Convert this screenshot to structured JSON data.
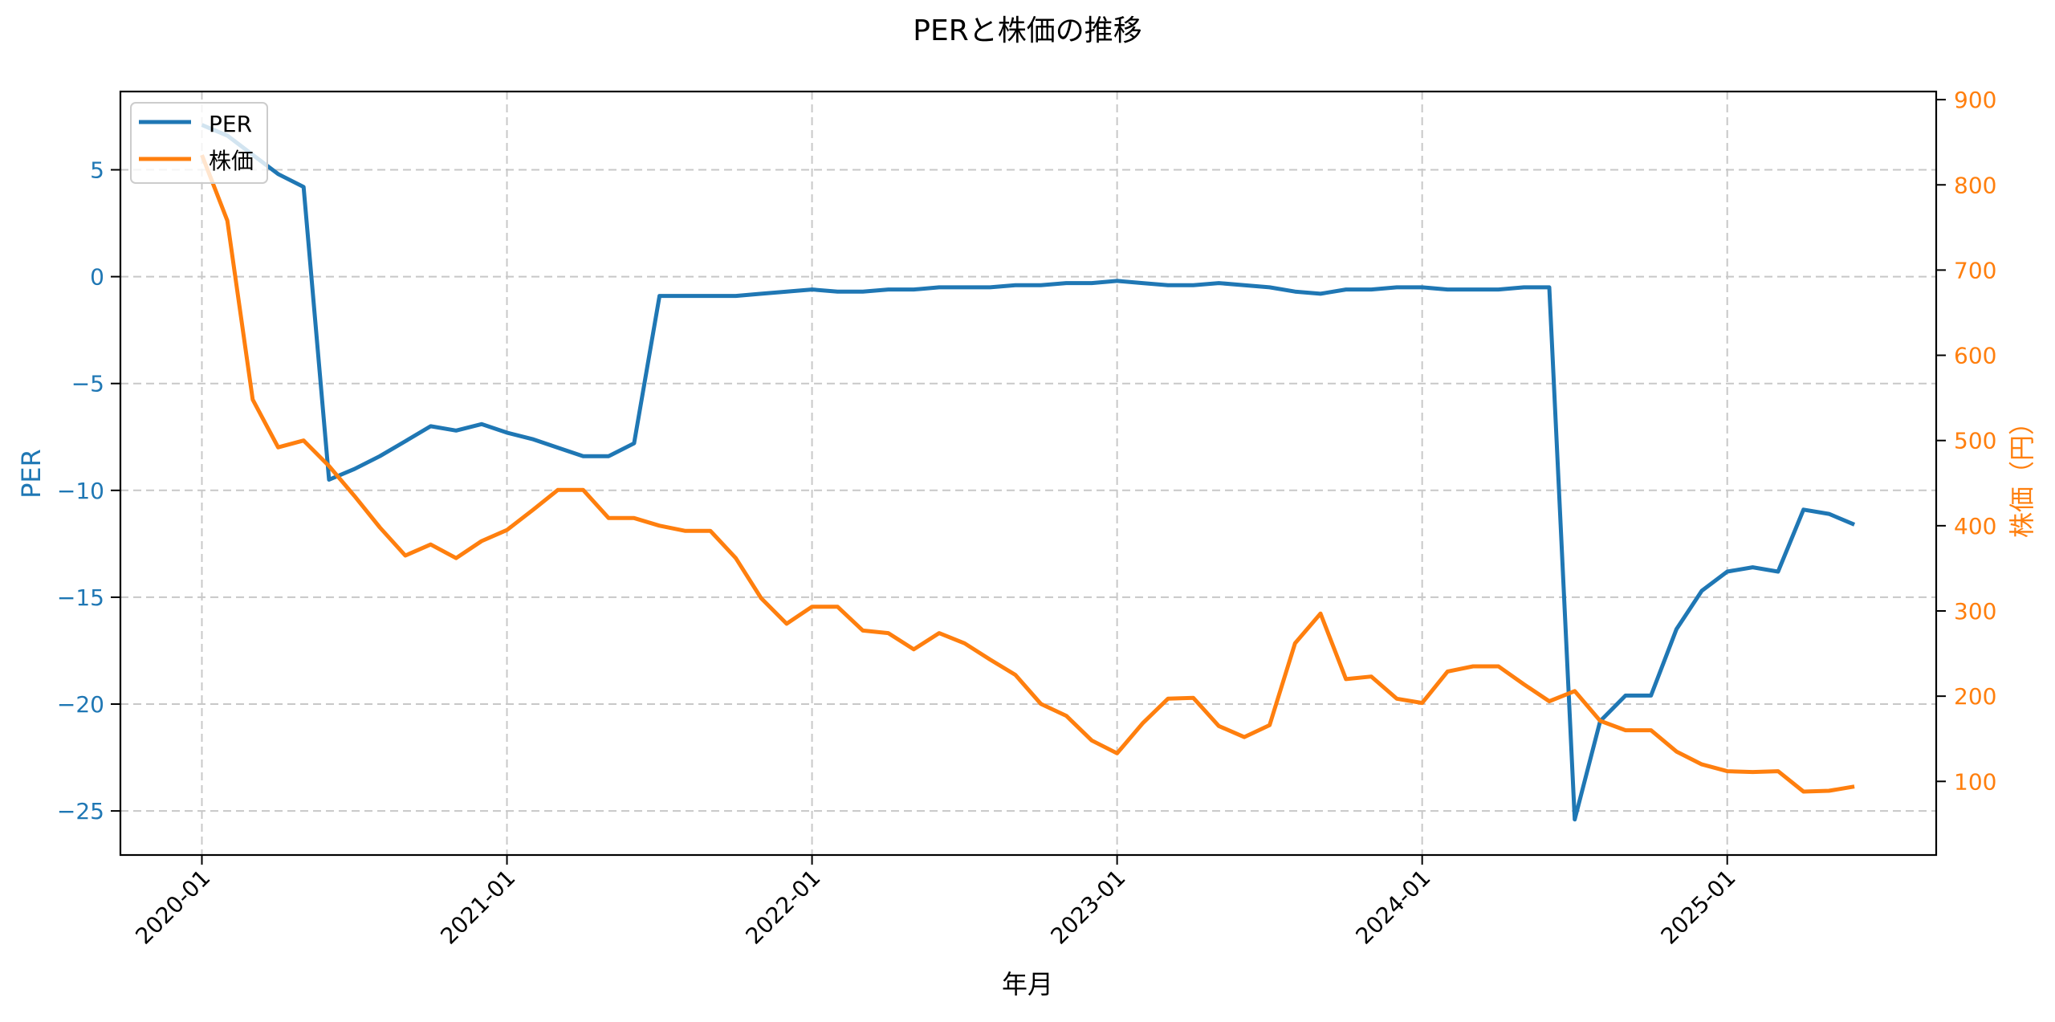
{
  "chart_data": {
    "type": "line",
    "title": "PERと株価の推移",
    "xlabel": "年月",
    "ylabel_left": "PER",
    "ylabel_right": "株価（円）",
    "x_ticks": [
      "2020-01",
      "2021-01",
      "2022-01",
      "2023-01",
      "2024-01",
      "2025-01"
    ],
    "y_left_ticks": [
      5,
      0,
      -5,
      -10,
      -15,
      -20,
      -25
    ],
    "y_right_ticks": [
      900,
      800,
      700,
      600,
      500,
      400,
      300,
      200,
      100
    ],
    "y_left_range": [
      -27.3,
      8.6
    ],
    "y_right_range": [
      13,
      912
    ],
    "grid": true,
    "legend_position": "upper left",
    "x": [
      "2020-01",
      "2020-02",
      "2020-03",
      "2020-04",
      "2020-05",
      "2020-06",
      "2020-07",
      "2020-08",
      "2020-09",
      "2020-10",
      "2020-11",
      "2020-12",
      "2021-01",
      "2021-02",
      "2021-03",
      "2021-04",
      "2021-05",
      "2021-06",
      "2021-07",
      "2021-08",
      "2021-09",
      "2021-10",
      "2021-11",
      "2021-12",
      "2022-01",
      "2022-02",
      "2022-03",
      "2022-04",
      "2022-05",
      "2022-06",
      "2022-07",
      "2022-08",
      "2022-09",
      "2022-10",
      "2022-11",
      "2022-12",
      "2023-01",
      "2023-02",
      "2023-03",
      "2023-04",
      "2023-05",
      "2023-06",
      "2023-07",
      "2023-08",
      "2023-09",
      "2023-10",
      "2023-11",
      "2023-12",
      "2024-01",
      "2024-02",
      "2024-03",
      "2024-04",
      "2024-05",
      "2024-06",
      "2024-07",
      "2024-08",
      "2024-09",
      "2024-10",
      "2024-11",
      "2024-12",
      "2025-01",
      "2025-02",
      "2025-03",
      "2025-04",
      "2025-05",
      "2025-06"
    ],
    "series": [
      {
        "name": "PER",
        "axis": "left",
        "color": "#1f77b4",
        "values": [
          7.1,
          6.6,
          5.7,
          4.8,
          4.2,
          -9.5,
          -9.0,
          -8.4,
          -7.7,
          -7.0,
          -7.2,
          -6.9,
          -7.3,
          -7.6,
          -8.0,
          -8.4,
          -8.4,
          -7.8,
          -0.9,
          -0.9,
          -0.9,
          -0.9,
          -0.8,
          -0.7,
          -0.6,
          -0.7,
          -0.7,
          -0.6,
          -0.6,
          -0.5,
          -0.5,
          -0.5,
          -0.4,
          -0.4,
          -0.3,
          -0.3,
          -0.2,
          -0.3,
          -0.4,
          -0.4,
          -0.3,
          -0.4,
          -0.5,
          -0.7,
          -0.8,
          -0.6,
          -0.6,
          -0.5,
          -0.5,
          -0.6,
          -0.6,
          -0.6,
          -0.5,
          -0.5,
          -25.4,
          -20.8,
          -19.6,
          -19.6,
          -16.5,
          -14.7,
          -13.8,
          -13.6,
          -13.8,
          -10.9,
          -11.1,
          -11.6
        ]
      },
      {
        "name": "株価",
        "axis": "right",
        "color": "#ff7f0e",
        "values": [
          835,
          758,
          548,
          492,
          500,
          470,
          435,
          398,
          365,
          378,
          362,
          382,
          395,
          418,
          442,
          442,
          409,
          409,
          400,
          394,
          394,
          362,
          315,
          285,
          305,
          305,
          277,
          274,
          255,
          274,
          262,
          243,
          225,
          191,
          177,
          148,
          133,
          168,
          197,
          198,
          165,
          152,
          166,
          262,
          297,
          220,
          223,
          197,
          192,
          229,
          235,
          235,
          214,
          194,
          206,
          171,
          160,
          160,
          135,
          120,
          112,
          111,
          112,
          88,
          89,
          94
        ]
      }
    ]
  },
  "legend": {
    "items": [
      {
        "label": "PER",
        "color": "#1f77b4"
      },
      {
        "label": "株価",
        "color": "#ff7f0e"
      }
    ]
  }
}
